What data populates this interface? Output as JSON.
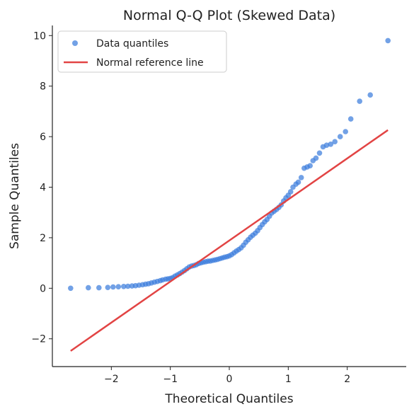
{
  "chart_data": {
    "type": "scatter",
    "title": "Normal Q-Q Plot (Skewed Data)",
    "xlabel": "Theoretical Quantiles",
    "ylabel": "Sample Quantiles",
    "xlim": [
      -3.0,
      3.0
    ],
    "ylim": [
      -3.1,
      10.4
    ],
    "x_ticks": [
      -2,
      -1,
      0,
      1,
      2
    ],
    "y_ticks": [
      -2,
      0,
      2,
      4,
      6,
      8,
      10
    ],
    "x_tick_labels": [
      "−2",
      "−1",
      "0",
      "1",
      "2"
    ],
    "y_tick_labels": [
      "−2",
      "0",
      "2",
      "4",
      "6",
      "8",
      "10"
    ],
    "grid": false,
    "legend_position": "top-left",
    "colors": {
      "points": "#3b7ddd",
      "line": "#e24444"
    },
    "series": [
      {
        "name": "Data quantiles",
        "kind": "points",
        "x": [
          -2.69,
          -2.39,
          -2.21,
          -2.06,
          -1.97,
          -1.88,
          -1.79,
          -1.72,
          -1.65,
          -1.59,
          -1.53,
          -1.47,
          -1.42,
          -1.37,
          -1.32,
          -1.27,
          -1.22,
          -1.17,
          -1.13,
          -1.08,
          -1.04,
          -1.0,
          -0.96,
          -0.92,
          -0.88,
          -0.84,
          -0.8,
          -0.76,
          -0.72,
          -0.68,
          -0.64,
          -0.6,
          -0.56,
          -0.52,
          -0.48,
          -0.44,
          -0.4,
          -0.36,
          -0.32,
          -0.28,
          -0.24,
          -0.2,
          -0.16,
          -0.12,
          -0.08,
          -0.04,
          0.0,
          0.04,
          0.08,
          0.12,
          0.16,
          0.2,
          0.24,
          0.28,
          0.32,
          0.36,
          0.4,
          0.44,
          0.48,
          0.52,
          0.56,
          0.6,
          0.64,
          0.68,
          0.72,
          0.76,
          0.8,
          0.84,
          0.88,
          0.92,
          0.96,
          1.0,
          1.04,
          1.08,
          1.13,
          1.17,
          1.22,
          1.27,
          1.32,
          1.37,
          1.42,
          1.47,
          1.53,
          1.59,
          1.65,
          1.72,
          1.79,
          1.88,
          1.97,
          2.06,
          2.21,
          2.39,
          2.69
        ],
        "y": [
          0.0,
          0.02,
          0.02,
          0.03,
          0.05,
          0.06,
          0.07,
          0.08,
          0.09,
          0.1,
          0.12,
          0.14,
          0.16,
          0.18,
          0.21,
          0.24,
          0.27,
          0.3,
          0.33,
          0.36,
          0.37,
          0.39,
          0.42,
          0.48,
          0.53,
          0.58,
          0.64,
          0.7,
          0.77,
          0.84,
          0.88,
          0.9,
          0.93,
          0.98,
          1.01,
          1.03,
          1.05,
          1.07,
          1.08,
          1.1,
          1.12,
          1.14,
          1.17,
          1.2,
          1.23,
          1.25,
          1.28,
          1.33,
          1.4,
          1.47,
          1.53,
          1.6,
          1.7,
          1.82,
          1.92,
          2.02,
          2.1,
          2.18,
          2.28,
          2.4,
          2.52,
          2.63,
          2.72,
          2.85,
          2.98,
          3.05,
          3.12,
          3.2,
          3.3,
          3.45,
          3.58,
          3.68,
          3.82,
          4.0,
          4.12,
          4.2,
          4.38,
          4.75,
          4.8,
          4.85,
          5.05,
          5.15,
          5.35,
          5.6,
          5.66,
          5.7,
          5.8,
          6.0,
          6.2,
          6.7,
          7.4,
          7.65,
          9.8
        ]
      },
      {
        "name": "Normal reference line",
        "kind": "line",
        "x": [
          -2.69,
          2.69
        ],
        "y": [
          -2.48,
          6.26
        ]
      }
    ]
  }
}
